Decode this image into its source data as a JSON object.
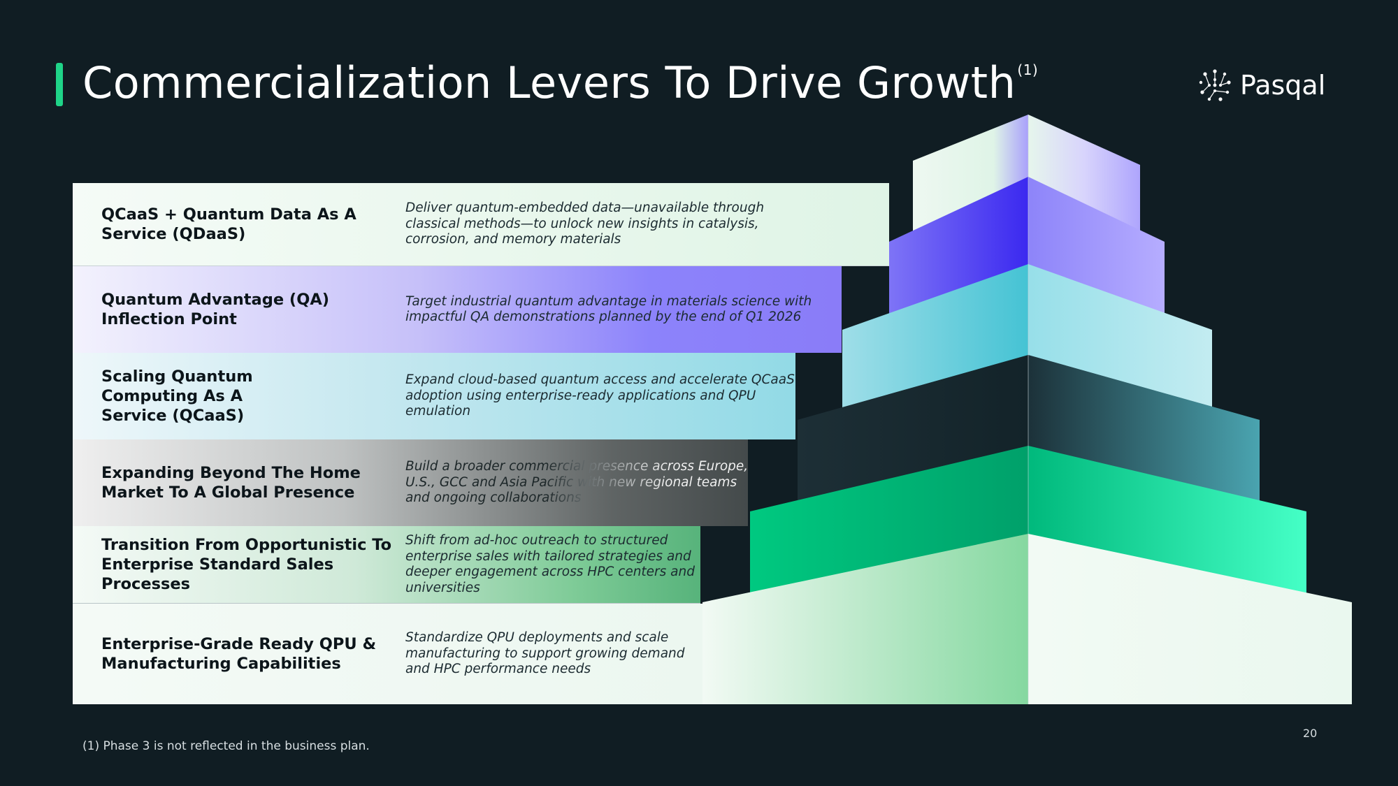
{
  "header": {
    "title": "Commercialization Levers To Drive Growth",
    "title_superscript": "(1)",
    "logo_text": "Pasqal",
    "logo_icon": "pasqal-atom-icon"
  },
  "levers": [
    {
      "label": "QCaaS + Quantum Data As A Service (QDaaS)",
      "description": "Deliver quantum-embedded data—unavailable through classical methods—to unlock new insights in catalysis, corrosion, and memory materials"
    },
    {
      "label": "Quantum Advantage (QA) Inflection Point",
      "description": "Target industrial quantum advantage in materials science with impactful QA demonstrations planned by the end of Q1 2026"
    },
    {
      "label": "Scaling Quantum Computing As A Service (QCaaS)",
      "description": "Expand cloud-based quantum access and accelerate QCaaS adoption using enterprise-ready applications and QPU emulation"
    },
    {
      "label": "Expanding Beyond The Home Market To A Global Presence",
      "description": "Build a broader commercial presence across Europe, U.S., GCC and Asia Pacific with new regional teams and ongoing collaborations"
    },
    {
      "label": "Transition From Opportunistic To Enterprise Standard Sales Processes",
      "description": "Shift from ad-hoc outreach to structured enterprise sales with tailored strategies and deeper engagement across HPC centers and universities"
    },
    {
      "label": "Enterprise-Grade Ready QPU & Manufacturing Capabilities",
      "description": "Standardize QPU deployments and scale manufacturing to support growing demand and HPC performance needs"
    }
  ],
  "footer": {
    "footnote": "(1) Phase 3 is not reflected in the business plan.",
    "page_number": "20"
  },
  "colors": {
    "background": "#101d23",
    "accent": "#1fd488",
    "tier_top": "#b3abff",
    "tier_purple": "#3d2cf0",
    "tier_cyan": "#4cc6d6",
    "tier_dark": "#162a31",
    "tier_green": "#00b878",
    "tier_base": "#8fdba5"
  }
}
